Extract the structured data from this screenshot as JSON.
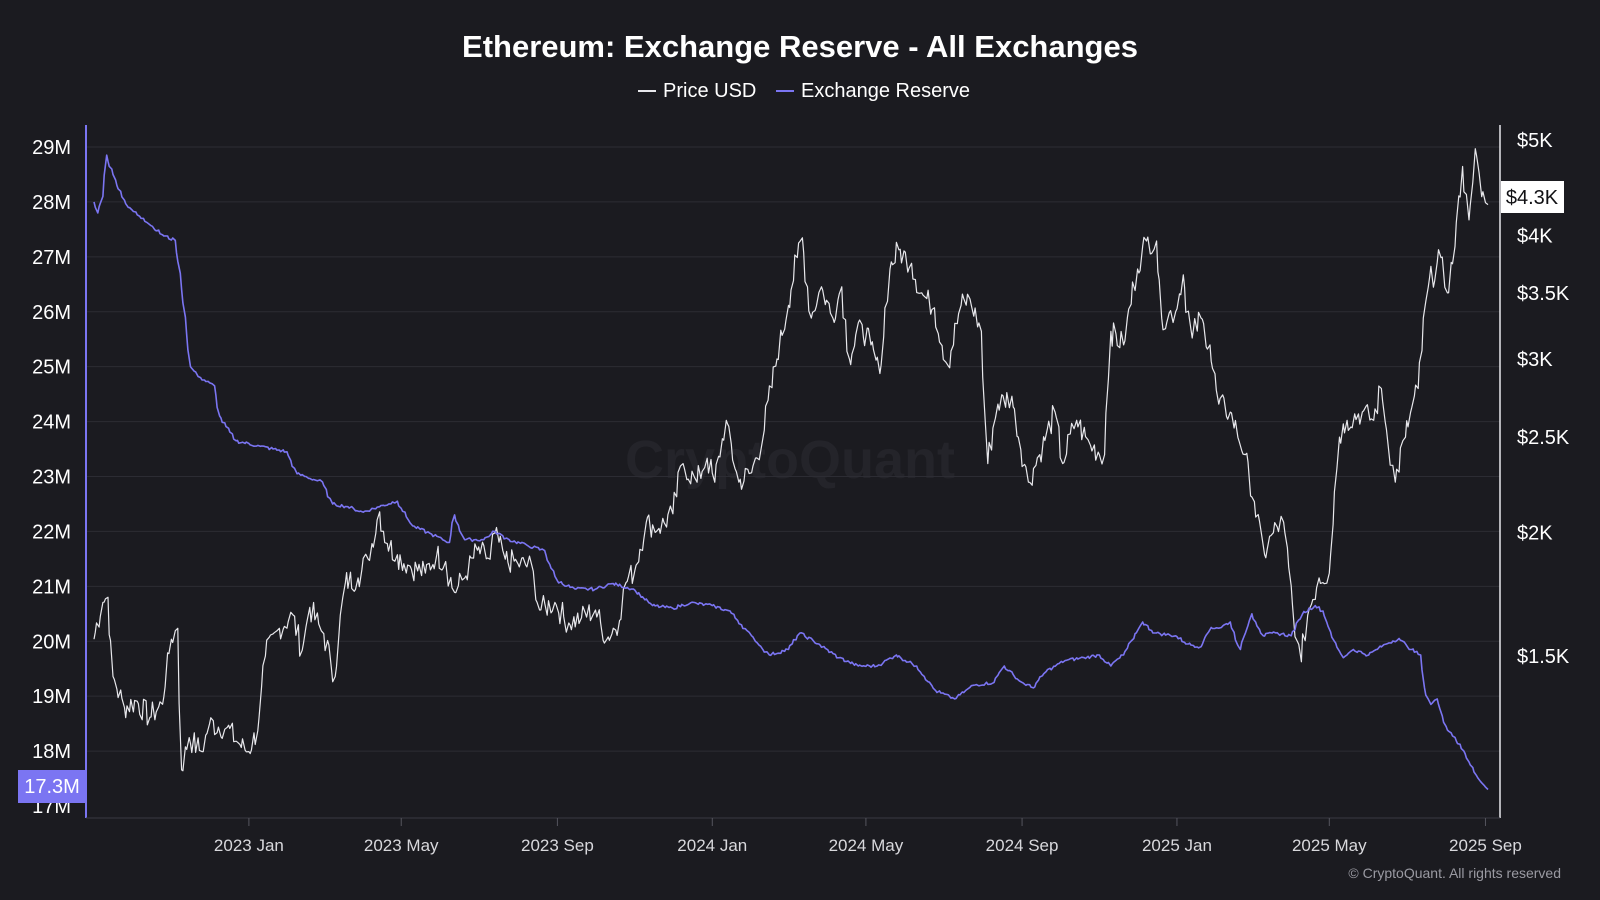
{
  "app": {
    "title": "Ethereum: Exchange Reserve - All Exchanges",
    "watermark": "CryptoQuant",
    "copyright": "© CryptoQuant. All rights reserved"
  },
  "colors": {
    "background": "#1b1b20",
    "price": "#e8e8ec",
    "reserve": "#7b75f2",
    "grid": "#2c2c33"
  },
  "chart_data": {
    "type": "line",
    "title": "Ethereum: Exchange Reserve - All Exchanges",
    "legend": [
      "Price USD",
      "Exchange Reserve"
    ],
    "legend_position": "top-center",
    "grid": true,
    "x_ticks": [
      "2023 Jan",
      "2023 May",
      "2023 Sep",
      "2024 Jan",
      "2024 May",
      "2024 Sep",
      "2025 Jan",
      "2025 May",
      "2025 Sep"
    ],
    "x_range": [
      "2022-09-01",
      "2025-09-03"
    ],
    "y_left": {
      "label": "",
      "ticks": [
        "29M",
        "28M",
        "27M",
        "26M",
        "25M",
        "24M",
        "23M",
        "22M",
        "21M",
        "20M",
        "19M",
        "18M",
        "17M"
      ],
      "range": [
        17.0,
        29.3
      ],
      "unit": "M ETH",
      "current_label": "17.3M"
    },
    "y_right": {
      "label": "",
      "scale": "log",
      "ticks": [
        "$5K",
        "$4K",
        "$3.5K",
        "$3K",
        "$2.5K",
        "$2K",
        "$1.5K"
      ],
      "current_label": "$4.3K"
    },
    "series": [
      {
        "name": "Price USD",
        "axis": "right",
        "points": [
          [
            "2022-09-01",
            1560
          ],
          [
            "2022-09-08",
            1700
          ],
          [
            "2022-09-12",
            1720
          ],
          [
            "2022-09-16",
            1430
          ],
          [
            "2022-09-25",
            1330
          ],
          [
            "2022-10-05",
            1350
          ],
          [
            "2022-10-15",
            1300
          ],
          [
            "2022-10-25",
            1340
          ],
          [
            "2022-11-01",
            1560
          ],
          [
            "2022-11-06",
            1600
          ],
          [
            "2022-11-09",
            1150
          ],
          [
            "2022-11-15",
            1240
          ],
          [
            "2022-11-25",
            1200
          ],
          [
            "2022-12-01",
            1280
          ],
          [
            "2022-12-15",
            1270
          ],
          [
            "2022-12-25",
            1220
          ],
          [
            "2023-01-01",
            1200
          ],
          [
            "2023-01-08",
            1260
          ],
          [
            "2023-01-14",
            1500
          ],
          [
            "2023-01-25",
            1600
          ],
          [
            "2023-02-05",
            1650
          ],
          [
            "2023-02-12",
            1520
          ],
          [
            "2023-02-18",
            1680
          ],
          [
            "2023-03-01",
            1580
          ],
          [
            "2023-03-10",
            1430
          ],
          [
            "2023-03-18",
            1780
          ],
          [
            "2023-03-28",
            1800
          ],
          [
            "2023-04-05",
            1880
          ],
          [
            "2023-04-14",
            2100
          ],
          [
            "2023-04-20",
            1950
          ],
          [
            "2023-04-28",
            1900
          ],
          [
            "2023-05-08",
            1850
          ],
          [
            "2023-05-20",
            1820
          ],
          [
            "2023-05-29",
            1900
          ],
          [
            "2023-06-05",
            1870
          ],
          [
            "2023-06-12",
            1740
          ],
          [
            "2023-06-20",
            1800
          ],
          [
            "2023-06-30",
            1920
          ],
          [
            "2023-07-10",
            1880
          ],
          [
            "2023-07-14",
            2000
          ],
          [
            "2023-07-22",
            1880
          ],
          [
            "2023-08-01",
            1860
          ],
          [
            "2023-08-12",
            1850
          ],
          [
            "2023-08-18",
            1670
          ],
          [
            "2023-08-30",
            1700
          ],
          [
            "2023-09-10",
            1620
          ],
          [
            "2023-09-20",
            1640
          ],
          [
            "2023-10-01",
            1670
          ],
          [
            "2023-10-10",
            1560
          ],
          [
            "2023-10-20",
            1630
          ],
          [
            "2023-10-25",
            1780
          ],
          [
            "2023-11-01",
            1830
          ],
          [
            "2023-11-10",
            2050
          ],
          [
            "2023-11-20",
            2020
          ],
          [
            "2023-12-01",
            2090
          ],
          [
            "2023-12-09",
            2350
          ],
          [
            "2023-12-20",
            2250
          ],
          [
            "2023-12-28",
            2380
          ],
          [
            "2024-01-03",
            2250
          ],
          [
            "2024-01-12",
            2600
          ],
          [
            "2024-01-22",
            2250
          ],
          [
            "2024-02-01",
            2300
          ],
          [
            "2024-02-10",
            2500
          ],
          [
            "2024-02-20",
            2950
          ],
          [
            "2024-03-01",
            3400
          ],
          [
            "2024-03-08",
            3800
          ],
          [
            "2024-03-12",
            3980
          ],
          [
            "2024-03-19",
            3300
          ],
          [
            "2024-03-27",
            3550
          ],
          [
            "2024-04-05",
            3300
          ],
          [
            "2024-04-12",
            3550
          ],
          [
            "2024-04-18",
            3000
          ],
          [
            "2024-04-28",
            3250
          ],
          [
            "2024-05-05",
            3100
          ],
          [
            "2024-05-12",
            2900
          ],
          [
            "2024-05-20",
            3700
          ],
          [
            "2024-05-27",
            3870
          ],
          [
            "2024-06-06",
            3750
          ],
          [
            "2024-06-14",
            3500
          ],
          [
            "2024-06-24",
            3380
          ],
          [
            "2024-07-05",
            2950
          ],
          [
            "2024-07-15",
            3400
          ],
          [
            "2024-07-22",
            3450
          ],
          [
            "2024-07-31",
            3200
          ],
          [
            "2024-08-05",
            2350
          ],
          [
            "2024-08-13",
            2700
          ],
          [
            "2024-08-24",
            2750
          ],
          [
            "2024-09-06",
            2250
          ],
          [
            "2024-09-15",
            2400
          ],
          [
            "2024-09-27",
            2650
          ],
          [
            "2024-10-03",
            2350
          ],
          [
            "2024-10-14",
            2600
          ],
          [
            "2024-10-25",
            2450
          ],
          [
            "2024-11-05",
            2400
          ],
          [
            "2024-11-10",
            3200
          ],
          [
            "2024-11-20",
            3100
          ],
          [
            "2024-12-01",
            3700
          ],
          [
            "2024-12-08",
            3950
          ],
          [
            "2024-12-16",
            3950
          ],
          [
            "2024-12-20",
            3300
          ],
          [
            "2024-12-31",
            3350
          ],
          [
            "2025-01-06",
            3650
          ],
          [
            "2025-01-13",
            3150
          ],
          [
            "2025-01-20",
            3300
          ],
          [
            "2025-01-27",
            3100
          ],
          [
            "2025-02-03",
            2700
          ],
          [
            "2025-02-12",
            2650
          ],
          [
            "2025-02-24",
            2400
          ],
          [
            "2025-03-03",
            2150
          ],
          [
            "2025-03-11",
            1900
          ],
          [
            "2025-03-18",
            2000
          ],
          [
            "2025-03-26",
            2050
          ],
          [
            "2025-04-06",
            1550
          ],
          [
            "2025-04-09",
            1480
          ],
          [
            "2025-04-14",
            1650
          ],
          [
            "2025-04-23",
            1800
          ],
          [
            "2025-05-01",
            1820
          ],
          [
            "2025-05-09",
            2500
          ],
          [
            "2025-05-15",
            2600
          ],
          [
            "2025-05-27",
            2650
          ],
          [
            "2025-06-05",
            2600
          ],
          [
            "2025-06-11",
            2800
          ],
          [
            "2025-06-22",
            2250
          ],
          [
            "2025-06-30",
            2500
          ],
          [
            "2025-07-10",
            2800
          ],
          [
            "2025-07-18",
            3550
          ],
          [
            "2025-07-28",
            3800
          ],
          [
            "2025-08-02",
            3500
          ],
          [
            "2025-08-08",
            3900
          ],
          [
            "2025-08-14",
            4700
          ],
          [
            "2025-08-19",
            4150
          ],
          [
            "2025-08-24",
            4900
          ],
          [
            "2025-08-29",
            4380
          ],
          [
            "2025-09-03",
            4300
          ]
        ]
      },
      {
        "name": "Exchange Reserve",
        "axis": "left",
        "points": [
          [
            "2022-09-01",
            28.0
          ],
          [
            "2022-09-04",
            27.8
          ],
          [
            "2022-09-08",
            28.1
          ],
          [
            "2022-09-11",
            28.85
          ],
          [
            "2022-09-18",
            28.4
          ],
          [
            "2022-09-28",
            27.9
          ],
          [
            "2022-10-10",
            27.7
          ],
          [
            "2022-10-25",
            27.4
          ],
          [
            "2022-11-04",
            27.3
          ],
          [
            "2022-11-08",
            26.7
          ],
          [
            "2022-11-12",
            25.9
          ],
          [
            "2022-11-16",
            25.0
          ],
          [
            "2022-11-24",
            24.8
          ],
          [
            "2022-12-05",
            24.65
          ],
          [
            "2022-12-09",
            24.1
          ],
          [
            "2022-12-22",
            23.65
          ],
          [
            "2023-01-10",
            23.55
          ],
          [
            "2023-01-31",
            23.45
          ],
          [
            "2023-02-08",
            23.05
          ],
          [
            "2023-02-28",
            22.9
          ],
          [
            "2023-03-08",
            22.5
          ],
          [
            "2023-03-20",
            22.45
          ],
          [
            "2023-04-01",
            22.35
          ],
          [
            "2023-04-14",
            22.45
          ],
          [
            "2023-04-28",
            22.55
          ],
          [
            "2023-05-10",
            22.1
          ],
          [
            "2023-05-25",
            21.95
          ],
          [
            "2023-06-08",
            21.8
          ],
          [
            "2023-06-12",
            22.3
          ],
          [
            "2023-06-20",
            21.85
          ],
          [
            "2023-07-05",
            21.85
          ],
          [
            "2023-07-14",
            22.0
          ],
          [
            "2023-07-25",
            21.85
          ],
          [
            "2023-08-08",
            21.75
          ],
          [
            "2023-08-22",
            21.65
          ],
          [
            "2023-09-01",
            21.1
          ],
          [
            "2023-09-15",
            20.95
          ],
          [
            "2023-10-01",
            20.95
          ],
          [
            "2023-10-15",
            21.05
          ],
          [
            "2023-10-31",
            20.95
          ],
          [
            "2023-11-15",
            20.65
          ],
          [
            "2023-12-01",
            20.6
          ],
          [
            "2023-12-15",
            20.7
          ],
          [
            "2024-01-01",
            20.65
          ],
          [
            "2024-01-15",
            20.55
          ],
          [
            "2024-02-01",
            20.1
          ],
          [
            "2024-02-15",
            19.75
          ],
          [
            "2024-03-01",
            19.85
          ],
          [
            "2024-03-10",
            20.15
          ],
          [
            "2024-03-25",
            19.95
          ],
          [
            "2024-04-10",
            19.7
          ],
          [
            "2024-04-25",
            19.55
          ],
          [
            "2024-05-10",
            19.55
          ],
          [
            "2024-05-25",
            19.75
          ],
          [
            "2024-06-10",
            19.55
          ],
          [
            "2024-06-25",
            19.1
          ],
          [
            "2024-07-10",
            18.95
          ],
          [
            "2024-07-25",
            19.2
          ],
          [
            "2024-08-10",
            19.25
          ],
          [
            "2024-08-18",
            19.55
          ],
          [
            "2024-09-01",
            19.25
          ],
          [
            "2024-09-10",
            19.15
          ],
          [
            "2024-09-20",
            19.45
          ],
          [
            "2024-10-05",
            19.65
          ],
          [
            "2024-10-20",
            19.7
          ],
          [
            "2024-11-01",
            19.75
          ],
          [
            "2024-11-10",
            19.55
          ],
          [
            "2024-11-20",
            19.75
          ],
          [
            "2024-11-28",
            20.05
          ],
          [
            "2024-12-05",
            20.35
          ],
          [
            "2024-12-15",
            20.15
          ],
          [
            "2024-12-31",
            20.1
          ],
          [
            "2025-01-10",
            19.95
          ],
          [
            "2025-01-20",
            19.9
          ],
          [
            "2025-01-28",
            20.25
          ],
          [
            "2025-02-05",
            20.25
          ],
          [
            "2025-02-12",
            20.35
          ],
          [
            "2025-02-20",
            19.85
          ],
          [
            "2025-03-01",
            20.5
          ],
          [
            "2025-03-10",
            20.1
          ],
          [
            "2025-03-20",
            20.15
          ],
          [
            "2025-04-01",
            20.1
          ],
          [
            "2025-04-10",
            20.5
          ],
          [
            "2025-04-20",
            20.65
          ],
          [
            "2025-04-26",
            20.55
          ],
          [
            "2025-05-05",
            20.0
          ],
          [
            "2025-05-12",
            19.7
          ],
          [
            "2025-05-20",
            19.85
          ],
          [
            "2025-06-01",
            19.75
          ],
          [
            "2025-06-15",
            19.95
          ],
          [
            "2025-06-25",
            20.05
          ],
          [
            "2025-07-05",
            19.85
          ],
          [
            "2025-07-12",
            19.75
          ],
          [
            "2025-07-15",
            19.15
          ],
          [
            "2025-07-20",
            18.85
          ],
          [
            "2025-07-25",
            18.95
          ],
          [
            "2025-08-01",
            18.45
          ],
          [
            "2025-08-08",
            18.25
          ],
          [
            "2025-08-15",
            18.0
          ],
          [
            "2025-08-22",
            17.7
          ],
          [
            "2025-08-28",
            17.45
          ],
          [
            "2025-09-03",
            17.3
          ]
        ]
      }
    ]
  }
}
